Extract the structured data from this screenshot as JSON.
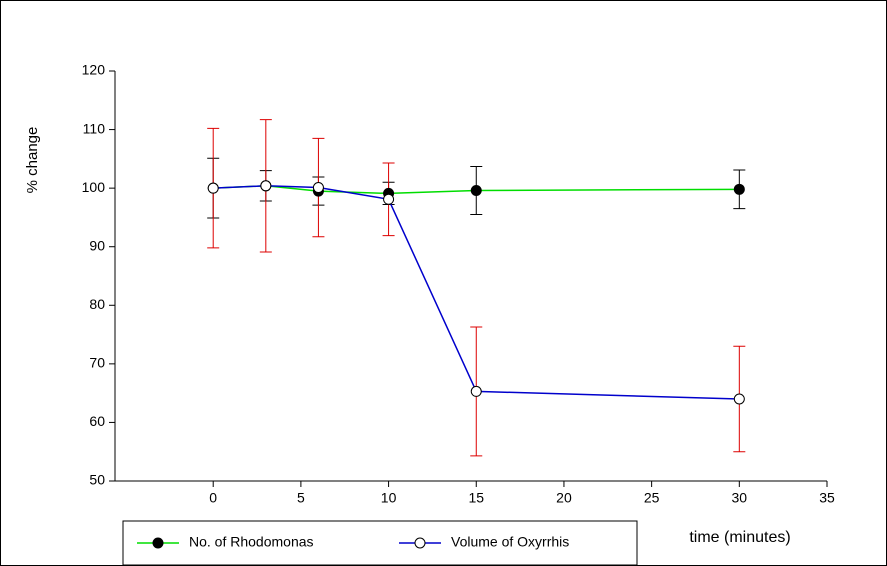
{
  "chart_data": {
    "type": "line",
    "x_label": "time (minutes)",
    "y_label": "% change",
    "xlim": [
      -5.6,
      35
    ],
    "ylim": [
      50,
      120
    ],
    "xticks": [
      0,
      5,
      10,
      15,
      20,
      25,
      30,
      35
    ],
    "yticks": [
      50,
      60,
      70,
      80,
      90,
      100,
      110,
      120
    ],
    "legend": "bottom",
    "series": [
      {
        "name": "No. of Rhodomonas",
        "color": "#00dd00",
        "marker": "filled",
        "error_color": "#000000",
        "x": [
          0,
          3,
          6,
          10,
          15,
          30
        ],
        "values": [
          100,
          100.4,
          99.5,
          99.1,
          99.6,
          99.8
        ],
        "error": [
          5.1,
          2.6,
          2.4,
          1.9,
          4.1,
          3.3
        ]
      },
      {
        "name": "Volume of Oxyrrhis",
        "color": "#0000cc",
        "marker": "open",
        "error_color": "#dd0000",
        "x": [
          0,
          3,
          6,
          10,
          15,
          30
        ],
        "values": [
          100,
          100.4,
          100.1,
          98.1,
          65.3,
          64
        ],
        "error": [
          10.2,
          11.3,
          8.4,
          6.2,
          11,
          9
        ]
      }
    ]
  }
}
